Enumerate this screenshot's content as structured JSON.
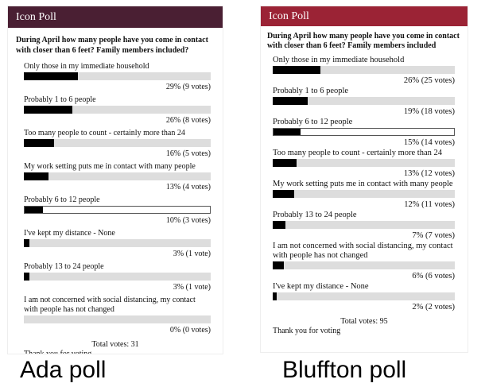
{
  "polls": [
    {
      "header": "Icon Poll",
      "question": "During April how many people have you come in contact with closer than 6 feet? Family members included?",
      "options": [
        {
          "label": "Only those in my immediate household",
          "value": 29,
          "value_label": "29% (9 votes)"
        },
        {
          "label": "Probably 1 to 6 people",
          "value": 26,
          "value_label": "26% (8 votes)"
        },
        {
          "label": "Too many people to count - certainly more than 24",
          "value": 16,
          "value_label": "16% (5 votes)"
        },
        {
          "label": "My work setting puts me in contact with many people",
          "value": 13,
          "value_label": "13% (4 votes)"
        },
        {
          "label": "Probably 6 to 12 people",
          "value": 10,
          "value_label": "10% (3 votes)",
          "highlighted": true
        },
        {
          "label": "I've kept my distance - None",
          "value": 3,
          "value_label": "3% (1 vote)"
        },
        {
          "label": "Probably 13 to 24 people",
          "value": 3,
          "value_label": "3% (1 vote)"
        },
        {
          "label": "I am not concerned with social distancing, my contact with people has not changed",
          "value": 0,
          "value_label": "0% (0 votes)"
        }
      ],
      "total": "Total votes: 31",
      "footer": "Thank you for voting",
      "caption": "Ada poll"
    },
    {
      "header": "Icon Poll",
      "question": "During April how many people have you come in contact with closer than 6 feet? Family members included",
      "options": [
        {
          "label": "Only those in my immediate household",
          "value": 26,
          "value_label": "26% (25 votes)"
        },
        {
          "label": "Probably 1 to 6 people",
          "value": 19,
          "value_label": "19% (18 votes)"
        },
        {
          "label": "Probably 6 to 12 people",
          "value": 15,
          "value_label": "15% (14 votes)",
          "highlighted": true
        },
        {
          "label": "Too many people to count - certainly more than 24",
          "value": 13,
          "value_label": "13% (12 votes)"
        },
        {
          "label": "My work setting puts me in contact with many people",
          "value": 12,
          "value_label": "12% (11 votes)"
        },
        {
          "label": "Probably 13 to 24 people",
          "value": 7,
          "value_label": "7% (7 votes)"
        },
        {
          "label": "I am not concerned with social distancing, my contact with people has not changed",
          "value": 6,
          "value_label": "6% (6 votes)"
        },
        {
          "label": "I've kept my distance - None",
          "value": 2,
          "value_label": "2% (2 votes)"
        }
      ],
      "total": "Total votes: 95",
      "footer": "Thank you for voting",
      "caption": "Bluffton poll"
    }
  ]
}
